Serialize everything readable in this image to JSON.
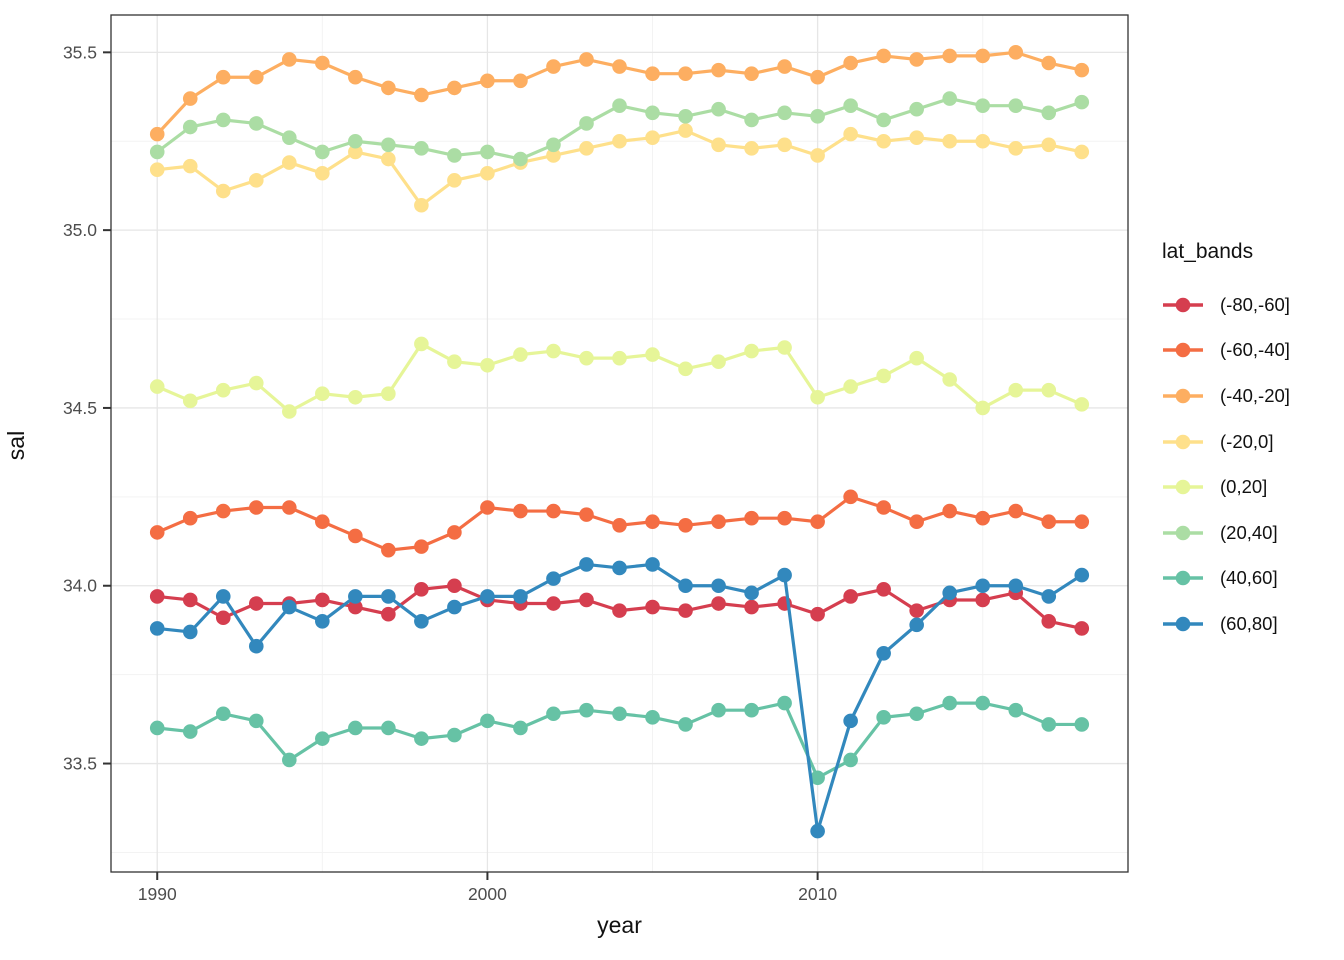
{
  "chart_data": {
    "type": "line",
    "title": "",
    "xlabel": "year",
    "ylabel": "sal",
    "legend_title": "lat_bands",
    "legend_position": "right",
    "grid": true,
    "x": [
      1990,
      1991,
      1992,
      1993,
      1994,
      1995,
      1996,
      1997,
      1998,
      1999,
      2000,
      2001,
      2002,
      2003,
      2004,
      2005,
      2006,
      2007,
      2008,
      2009,
      2010,
      2011,
      2012,
      2013,
      2014,
      2015,
      2016,
      2017,
      2018
    ],
    "x_ticks": [
      1990,
      2000,
      2010
    ],
    "x_minor": [
      1995,
      2005,
      2015
    ],
    "y_ticks": [
      33.5,
      34.0,
      34.5,
      35.0,
      35.5
    ],
    "y_minor": [
      33.25,
      33.75,
      34.25,
      34.75,
      35.25
    ],
    "xlim": [
      1988.6,
      2019.4
    ],
    "ylim": [
      33.195,
      35.605
    ],
    "series": [
      {
        "name": "(-80,-60]",
        "color": "#d53e4f",
        "values": [
          33.97,
          33.96,
          33.91,
          33.95,
          33.95,
          33.96,
          33.94,
          33.92,
          33.99,
          34.0,
          33.96,
          33.95,
          33.95,
          33.96,
          33.93,
          33.94,
          33.93,
          33.95,
          33.94,
          33.95,
          33.92,
          33.97,
          33.99,
          33.93,
          33.96,
          33.96,
          33.98,
          33.9,
          33.88
        ]
      },
      {
        "name": "(-60,-40]",
        "color": "#f46d43",
        "values": [
          34.15,
          34.19,
          34.21,
          34.22,
          34.22,
          34.18,
          34.14,
          34.1,
          34.11,
          34.15,
          34.22,
          34.21,
          34.21,
          34.2,
          34.17,
          34.18,
          34.17,
          34.18,
          34.19,
          34.19,
          34.18,
          34.25,
          34.22,
          34.18,
          34.21,
          34.19,
          34.21,
          34.18,
          34.18
        ]
      },
      {
        "name": "(-40,-20]",
        "color": "#fdae61",
        "values": [
          35.27,
          35.37,
          35.43,
          35.43,
          35.48,
          35.47,
          35.43,
          35.4,
          35.38,
          35.4,
          35.42,
          35.42,
          35.46,
          35.48,
          35.46,
          35.44,
          35.44,
          35.45,
          35.44,
          35.46,
          35.43,
          35.47,
          35.49,
          35.48,
          35.49,
          35.49,
          35.5,
          35.47,
          35.45
        ]
      },
      {
        "name": "(-20,0]",
        "color": "#fee08b",
        "values": [
          35.17,
          35.18,
          35.11,
          35.14,
          35.19,
          35.16,
          35.22,
          35.2,
          35.07,
          35.14,
          35.16,
          35.19,
          35.21,
          35.23,
          35.25,
          35.26,
          35.28,
          35.24,
          35.23,
          35.24,
          35.21,
          35.27,
          35.25,
          35.26,
          35.25,
          35.25,
          35.23,
          35.24,
          35.22
        ]
      },
      {
        "name": "(0,20]",
        "color": "#e6f598",
        "values": [
          34.56,
          34.52,
          34.55,
          34.57,
          34.49,
          34.54,
          34.53,
          34.54,
          34.68,
          34.63,
          34.62,
          34.65,
          34.66,
          34.64,
          34.64,
          34.65,
          34.61,
          34.63,
          34.66,
          34.67,
          34.53,
          34.56,
          34.59,
          34.64,
          34.58,
          34.5,
          34.55,
          34.55,
          34.51
        ]
      },
      {
        "name": "(20,40]",
        "color": "#abdda4",
        "values": [
          35.22,
          35.29,
          35.31,
          35.3,
          35.26,
          35.22,
          35.25,
          35.24,
          35.23,
          35.21,
          35.22,
          35.2,
          35.24,
          35.3,
          35.35,
          35.33,
          35.32,
          35.34,
          35.31,
          35.33,
          35.32,
          35.35,
          35.31,
          35.34,
          35.37,
          35.35,
          35.35,
          35.33,
          35.36
        ]
      },
      {
        "name": "(40,60]",
        "color": "#66c2a5",
        "values": [
          33.6,
          33.59,
          33.64,
          33.62,
          33.51,
          33.57,
          33.6,
          33.6,
          33.57,
          33.58,
          33.62,
          33.6,
          33.64,
          33.65,
          33.64,
          33.63,
          33.61,
          33.65,
          33.65,
          33.67,
          33.46,
          33.51,
          33.63,
          33.64,
          33.67,
          33.67,
          33.65,
          33.61,
          33.61
        ]
      },
      {
        "name": "(60,80]",
        "color": "#3288bd",
        "values": [
          33.88,
          33.87,
          33.97,
          33.83,
          33.94,
          33.9,
          33.97,
          33.97,
          33.9,
          33.94,
          33.97,
          33.97,
          34.02,
          34.06,
          34.05,
          34.06,
          34.0,
          34.0,
          33.98,
          34.03,
          33.31,
          33.62,
          33.81,
          33.89,
          33.98,
          34.0,
          34.0,
          33.97,
          34.03
        ]
      }
    ],
    "style": {
      "panel_border": "#333333",
      "grid_major": "#e6e6e6",
      "grid_minor": "#f3f3f3",
      "tick_color": "#333333",
      "tick_label_color": "#4d4d4d"
    }
  }
}
